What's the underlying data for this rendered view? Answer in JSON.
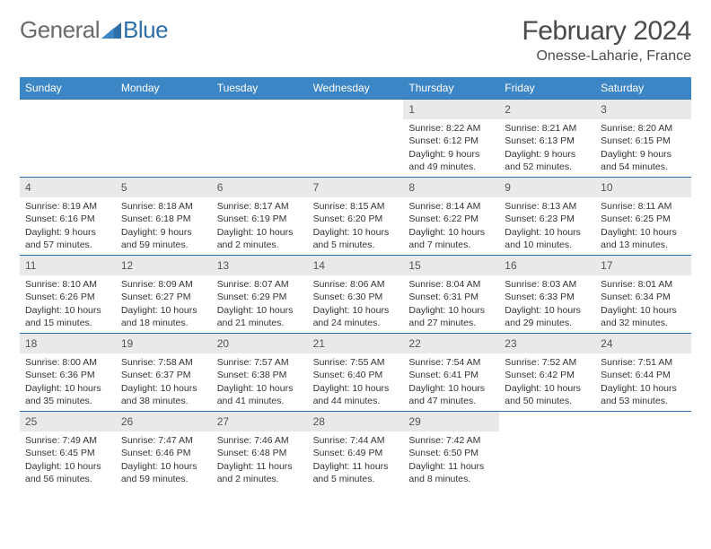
{
  "logo": {
    "part1": "General",
    "part2": "Blue"
  },
  "title": {
    "month": "February 2024",
    "location": "Onesse-Laharie, France"
  },
  "colors": {
    "header_bg": "#3d86c6",
    "header_text": "#ffffff",
    "rule": "#2f6fa7",
    "daynum_bg": "#e9e9e9",
    "text": "#333333",
    "logo_gray": "#6a6a6a",
    "logo_blue": "#2f6fa7"
  },
  "dow": [
    "Sunday",
    "Monday",
    "Tuesday",
    "Wednesday",
    "Thursday",
    "Friday",
    "Saturday"
  ],
  "weeks": [
    [
      null,
      null,
      null,
      null,
      {
        "n": "1",
        "sr": "8:22 AM",
        "ss": "6:12 PM",
        "dl": "9 hours and 49 minutes."
      },
      {
        "n": "2",
        "sr": "8:21 AM",
        "ss": "6:13 PM",
        "dl": "9 hours and 52 minutes."
      },
      {
        "n": "3",
        "sr": "8:20 AM",
        "ss": "6:15 PM",
        "dl": "9 hours and 54 minutes."
      }
    ],
    [
      {
        "n": "4",
        "sr": "8:19 AM",
        "ss": "6:16 PM",
        "dl": "9 hours and 57 minutes."
      },
      {
        "n": "5",
        "sr": "8:18 AM",
        "ss": "6:18 PM",
        "dl": "9 hours and 59 minutes."
      },
      {
        "n": "6",
        "sr": "8:17 AM",
        "ss": "6:19 PM",
        "dl": "10 hours and 2 minutes."
      },
      {
        "n": "7",
        "sr": "8:15 AM",
        "ss": "6:20 PM",
        "dl": "10 hours and 5 minutes."
      },
      {
        "n": "8",
        "sr": "8:14 AM",
        "ss": "6:22 PM",
        "dl": "10 hours and 7 minutes."
      },
      {
        "n": "9",
        "sr": "8:13 AM",
        "ss": "6:23 PM",
        "dl": "10 hours and 10 minutes."
      },
      {
        "n": "10",
        "sr": "8:11 AM",
        "ss": "6:25 PM",
        "dl": "10 hours and 13 minutes."
      }
    ],
    [
      {
        "n": "11",
        "sr": "8:10 AM",
        "ss": "6:26 PM",
        "dl": "10 hours and 15 minutes."
      },
      {
        "n": "12",
        "sr": "8:09 AM",
        "ss": "6:27 PM",
        "dl": "10 hours and 18 minutes."
      },
      {
        "n": "13",
        "sr": "8:07 AM",
        "ss": "6:29 PM",
        "dl": "10 hours and 21 minutes."
      },
      {
        "n": "14",
        "sr": "8:06 AM",
        "ss": "6:30 PM",
        "dl": "10 hours and 24 minutes."
      },
      {
        "n": "15",
        "sr": "8:04 AM",
        "ss": "6:31 PM",
        "dl": "10 hours and 27 minutes."
      },
      {
        "n": "16",
        "sr": "8:03 AM",
        "ss": "6:33 PM",
        "dl": "10 hours and 29 minutes."
      },
      {
        "n": "17",
        "sr": "8:01 AM",
        "ss": "6:34 PM",
        "dl": "10 hours and 32 minutes."
      }
    ],
    [
      {
        "n": "18",
        "sr": "8:00 AM",
        "ss": "6:36 PM",
        "dl": "10 hours and 35 minutes."
      },
      {
        "n": "19",
        "sr": "7:58 AM",
        "ss": "6:37 PM",
        "dl": "10 hours and 38 minutes."
      },
      {
        "n": "20",
        "sr": "7:57 AM",
        "ss": "6:38 PM",
        "dl": "10 hours and 41 minutes."
      },
      {
        "n": "21",
        "sr": "7:55 AM",
        "ss": "6:40 PM",
        "dl": "10 hours and 44 minutes."
      },
      {
        "n": "22",
        "sr": "7:54 AM",
        "ss": "6:41 PM",
        "dl": "10 hours and 47 minutes."
      },
      {
        "n": "23",
        "sr": "7:52 AM",
        "ss": "6:42 PM",
        "dl": "10 hours and 50 minutes."
      },
      {
        "n": "24",
        "sr": "7:51 AM",
        "ss": "6:44 PM",
        "dl": "10 hours and 53 minutes."
      }
    ],
    [
      {
        "n": "25",
        "sr": "7:49 AM",
        "ss": "6:45 PM",
        "dl": "10 hours and 56 minutes."
      },
      {
        "n": "26",
        "sr": "7:47 AM",
        "ss": "6:46 PM",
        "dl": "10 hours and 59 minutes."
      },
      {
        "n": "27",
        "sr": "7:46 AM",
        "ss": "6:48 PM",
        "dl": "11 hours and 2 minutes."
      },
      {
        "n": "28",
        "sr": "7:44 AM",
        "ss": "6:49 PM",
        "dl": "11 hours and 5 minutes."
      },
      {
        "n": "29",
        "sr": "7:42 AM",
        "ss": "6:50 PM",
        "dl": "11 hours and 8 minutes."
      },
      null,
      null
    ]
  ],
  "labels": {
    "sunrise": "Sunrise: ",
    "sunset": "Sunset: ",
    "daylight": "Daylight: "
  }
}
